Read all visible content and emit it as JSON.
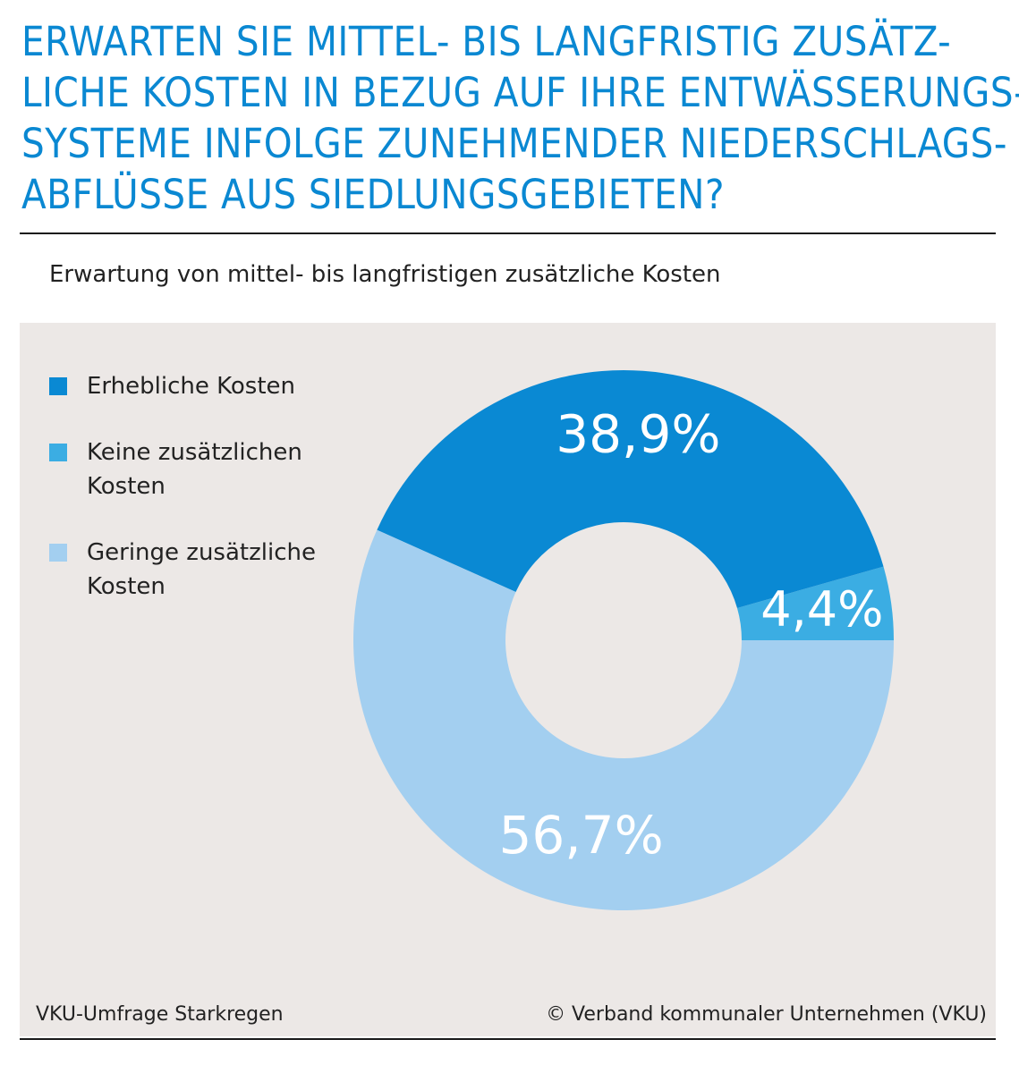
{
  "title_lines": [
    "ERWARTEN SIE MITTEL- BIS LANGFRISTIG ZUSÄTZ-",
    "LICHE KOSTEN IN BEZUG AUF IHRE ENTWÄSSERUNGS-",
    "SYSTEME INFOLGE ZUNEHMENDER NIEDERSCHLAGS-",
    "ABFLÜSSE AUS SIEDLUNGSGEBIETEN?"
  ],
  "footer": {
    "source": "VKU-Umfrage Starkregen",
    "copyright": "© Verband kommunaler Unternehmen (VKU)"
  },
  "colors": {
    "title": "#0a88d2",
    "panel_bg": "#ece8e6"
  },
  "chart_data": {
    "type": "pie",
    "subtitle": "Erwartung von mittel- bis langfristigen zusätzliche Kosten",
    "legend_position": "left",
    "slices": [
      {
        "name": "Erhebliche Kosten",
        "value": 38.9,
        "label": "38,9%",
        "color": "#0a89d3"
      },
      {
        "name": "Keine zusätzlichen\nKosten",
        "value": 4.4,
        "label": "4,4%",
        "color": "#3bade3"
      },
      {
        "name": "Geringe zusätzliche\nKosten",
        "value": 56.7,
        "label": "56,7%",
        "color": "#a3cff0"
      }
    ]
  }
}
